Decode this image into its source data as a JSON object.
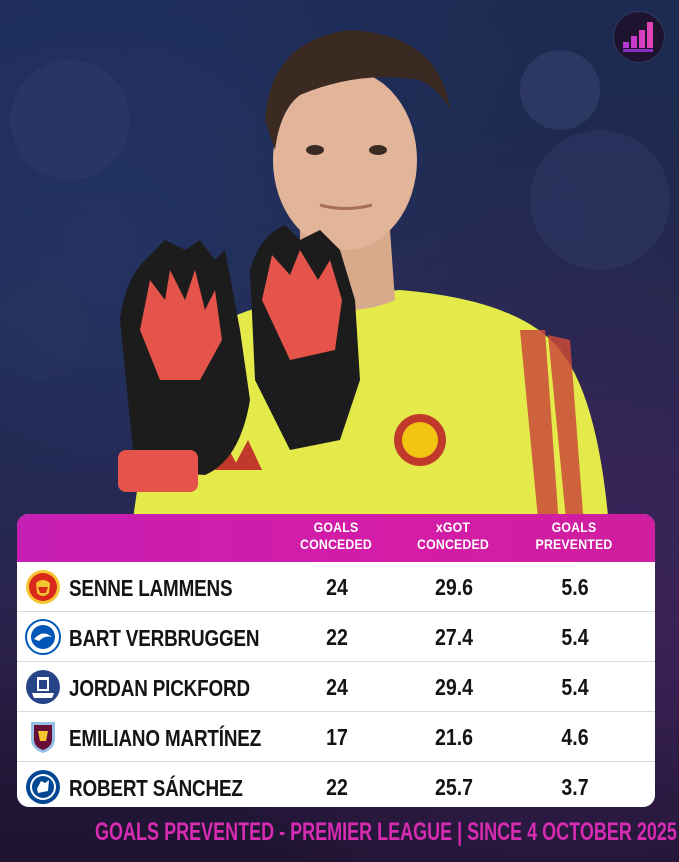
{
  "table": {
    "headers": [
      {
        "line1": "GOALS",
        "line2": "CONCEDED"
      },
      {
        "line1": "xGOT",
        "line2": "CONCEDED"
      },
      {
        "line1": "GOALS",
        "line2": "PREVENTED"
      }
    ],
    "rows": [
      {
        "player": "SENNE LAMMENS",
        "club_icon": "manchester-united-crest",
        "goals_conceded": "24",
        "xgot_conceded": "29.6",
        "goals_prevented": "5.6"
      },
      {
        "player": "BART VERBRUGGEN",
        "club_icon": "brighton-crest",
        "goals_conceded": "22",
        "xgot_conceded": "27.4",
        "goals_prevented": "5.4"
      },
      {
        "player": "JORDAN PICKFORD",
        "club_icon": "everton-crest",
        "goals_conceded": "24",
        "xgot_conceded": "29.4",
        "goals_prevented": "5.4"
      },
      {
        "player": "EMILIANO MARTÍNEZ",
        "club_icon": "aston-villa-crest",
        "goals_conceded": "17",
        "xgot_conceded": "21.6",
        "goals_prevented": "4.6"
      },
      {
        "player": "ROBERT SÁNCHEZ",
        "club_icon": "chelsea-crest",
        "goals_conceded": "22",
        "xgot_conceded": "25.7",
        "goals_prevented": "3.7"
      }
    ]
  },
  "footer": "GOALS PREVENTED - PREMIER LEAGUE | SINCE 4 OCTOBER 2025",
  "colors": {
    "accent": "#d41ca6",
    "footer_text": "#d72bb2",
    "kit_yellow": "#e3ea4a"
  }
}
